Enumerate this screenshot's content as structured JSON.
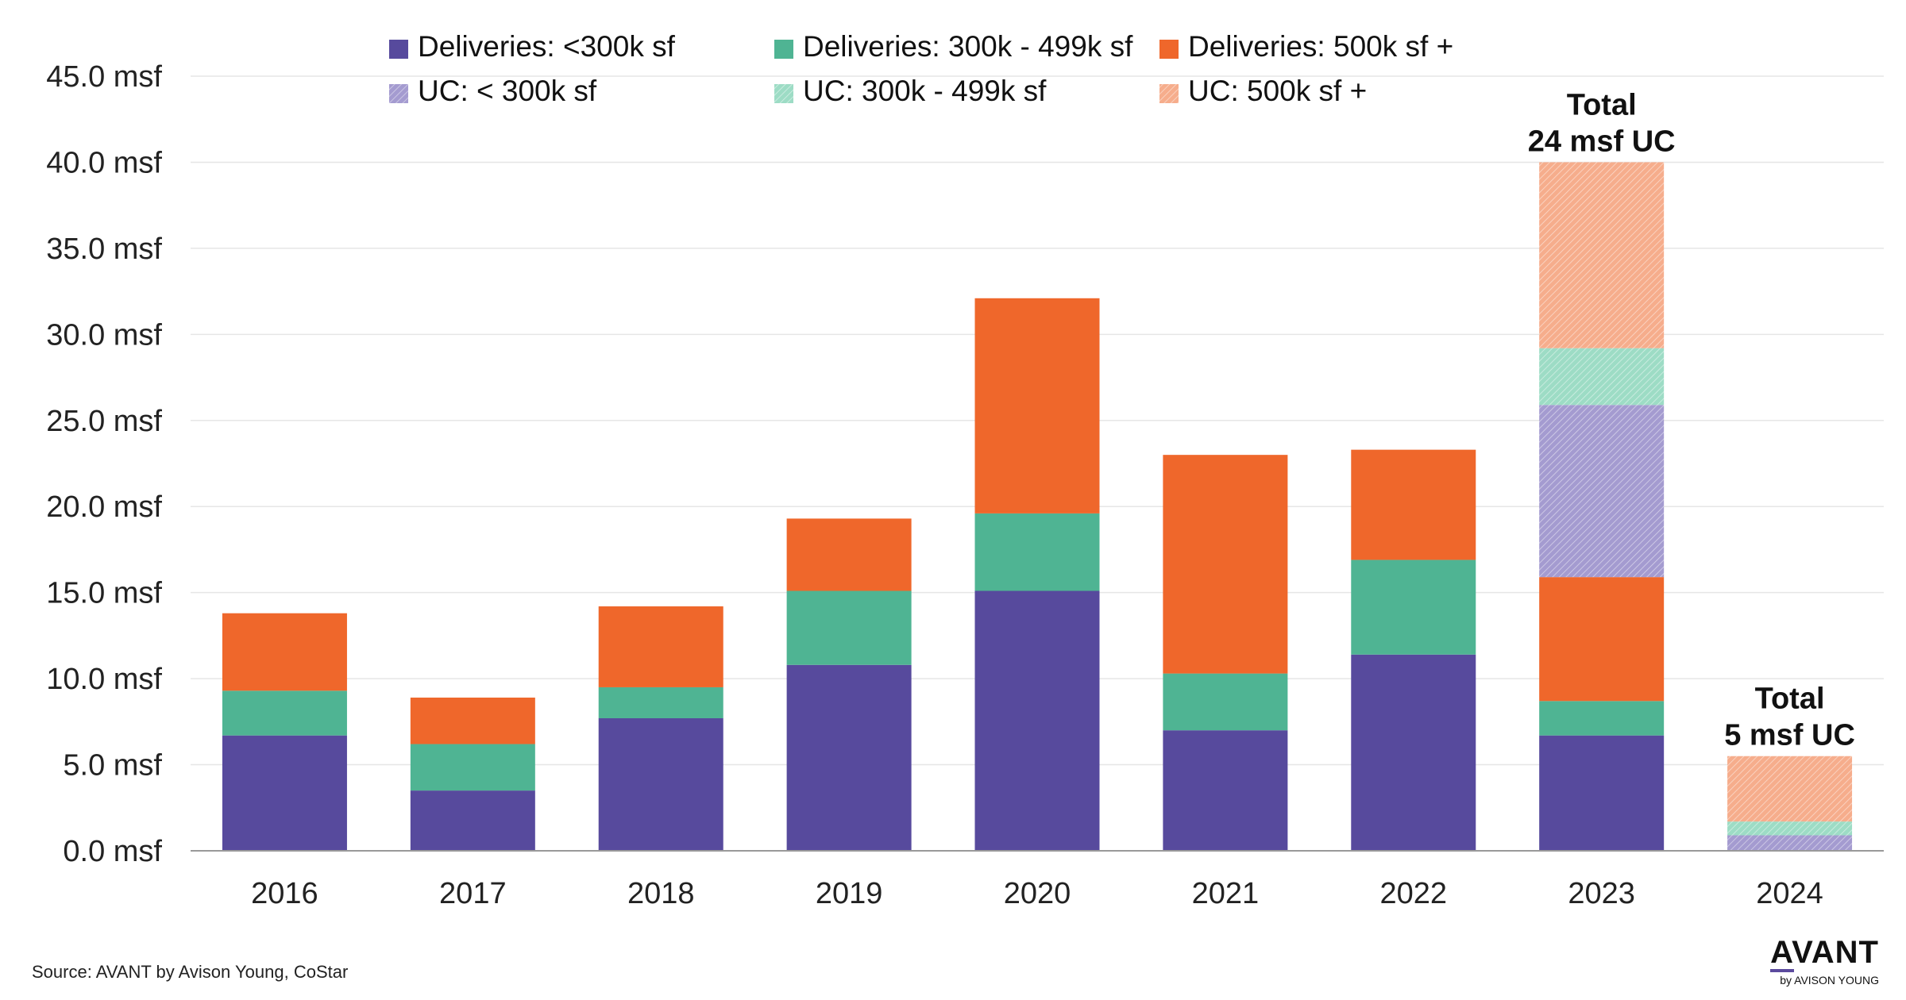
{
  "chart_data": {
    "type": "bar",
    "stacked": true,
    "categories": [
      "2016",
      "2017",
      "2018",
      "2019",
      "2020",
      "2021",
      "2022",
      "2023",
      "2024"
    ],
    "series": [
      {
        "key": "del_lt300",
        "name": "Deliveries: <300k sf",
        "color": "#574a9d",
        "pattern": false,
        "values": [
          6.7,
          3.5,
          7.7,
          10.8,
          15.1,
          7.0,
          11.4,
          6.7,
          0
        ]
      },
      {
        "key": "del_300_499",
        "name": "Deliveries: 300k - 499k sf",
        "color": "#4fb493",
        "pattern": false,
        "values": [
          2.6,
          2.7,
          1.8,
          4.3,
          4.5,
          3.3,
          5.5,
          2.0,
          0
        ]
      },
      {
        "key": "del_500",
        "name": "Deliveries: 500k sf +",
        "color": "#ef672b",
        "pattern": false,
        "values": [
          4.5,
          2.7,
          4.7,
          4.2,
          12.5,
          12.7,
          6.4,
          7.2,
          0
        ]
      },
      {
        "key": "uc_lt300",
        "name": "UC: < 300k sf",
        "color": "#a49bd0",
        "pattern": true,
        "values": [
          0,
          0,
          0,
          0,
          0,
          0,
          0,
          10.0,
          0.9
        ]
      },
      {
        "key": "uc_300_499",
        "name": "UC: 300k - 499k sf",
        "color": "#9ddcc5",
        "pattern": true,
        "values": [
          0,
          0,
          0,
          0,
          0,
          0,
          0,
          3.3,
          0.8
        ]
      },
      {
        "key": "uc_500",
        "name": "UC: 500k sf +",
        "color": "#f6ad8c",
        "pattern": true,
        "values": [
          0,
          0,
          0,
          0,
          0,
          0,
          0,
          10.8,
          3.8
        ]
      }
    ],
    "yaxis": {
      "min": 0,
      "max": 45,
      "step": 5,
      "tick_labels": [
        "0.0 msf",
        "5.0 msf",
        "10.0 msf",
        "15.0 msf",
        "20.0 msf",
        "25.0 msf",
        "30.0 msf",
        "35.0 msf",
        "40.0 msf",
        "45.0 msf"
      ]
    },
    "grid": true,
    "legend_position": "top",
    "annotations": [
      {
        "category": "2023",
        "lines": [
          "Total",
          "24 msf UC"
        ]
      },
      {
        "category": "2024",
        "lines": [
          "Total",
          "5 msf UC"
        ]
      }
    ]
  },
  "footer": {
    "source": "Source: AVANT by Avison Young, CoStar",
    "brand_name": "AVANT",
    "brand_sub": "by AVISON YOUNG"
  }
}
